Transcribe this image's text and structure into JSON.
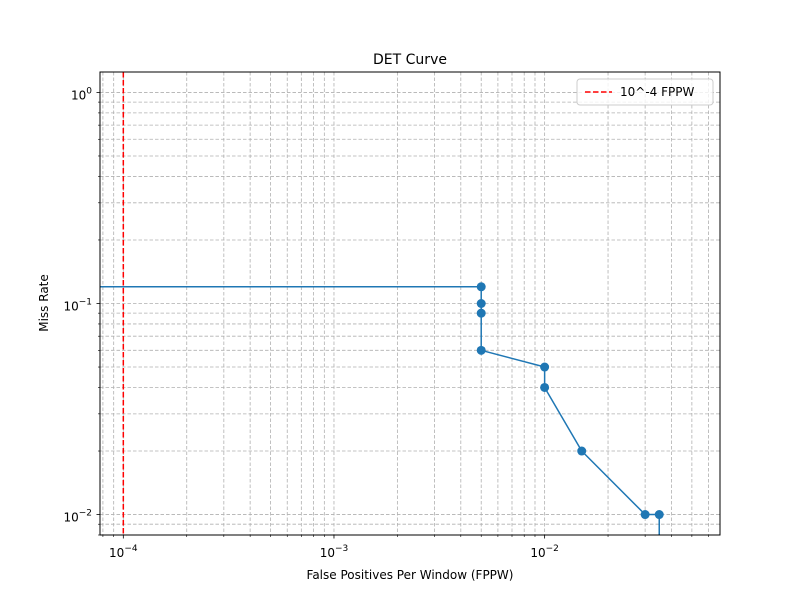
{
  "chart_data": {
    "type": "line",
    "title": "DET Curve",
    "xlabel": "False Positives Per Window (FPPW)",
    "ylabel": "Miss Rate",
    "xscale": "log",
    "yscale": "log",
    "xlim": [
      7.75e-05,
      0.068
    ],
    "ylim": [
      0.008,
      1.25
    ],
    "grid": true,
    "grid_which": "both",
    "grid_style": "dashed",
    "legend_placement": "top-right",
    "x_ticks": [
      {
        "value": 0.0001,
        "base": "10",
        "exp": "−4"
      },
      {
        "value": 0.001,
        "base": "10",
        "exp": "−3"
      },
      {
        "value": 0.01,
        "base": "10",
        "exp": "−2"
      }
    ],
    "y_ticks": [
      {
        "value": 0.01,
        "base": "10",
        "exp": "−2"
      },
      {
        "value": 0.1,
        "base": "10",
        "exp": "−1"
      },
      {
        "value": 1,
        "base": "10",
        "exp": "0"
      }
    ],
    "series": [
      {
        "color": "#1f77b4",
        "marker": "circle",
        "points": [
          {
            "x": 7.75e-05,
            "y": 0.12,
            "marker": false
          },
          {
            "x": 0.005,
            "y": 0.12,
            "marker": true
          },
          {
            "x": 0.005,
            "y": 0.1,
            "marker": true
          },
          {
            "x": 0.005,
            "y": 0.09,
            "marker": true
          },
          {
            "x": 0.005,
            "y": 0.06,
            "marker": true
          },
          {
            "x": 0.01,
            "y": 0.05,
            "marker": true
          },
          {
            "x": 0.01,
            "y": 0.04,
            "marker": true
          },
          {
            "x": 0.015,
            "y": 0.02,
            "marker": true
          },
          {
            "x": 0.03,
            "y": 0.01,
            "marker": true
          },
          {
            "x": 0.035,
            "y": 0.01,
            "marker": true
          },
          {
            "x": 0.035,
            "y": 0.008,
            "marker": false
          }
        ]
      }
    ],
    "reference_lines": [
      {
        "name": "10^-4 FPPW",
        "orientation": "vertical",
        "x": 0.0001,
        "color": "#ff0000",
        "style": "dashed"
      }
    ],
    "legend": [
      {
        "label": "10^-4 FPPW",
        "color": "#ff0000",
        "style": "dashed"
      }
    ]
  }
}
